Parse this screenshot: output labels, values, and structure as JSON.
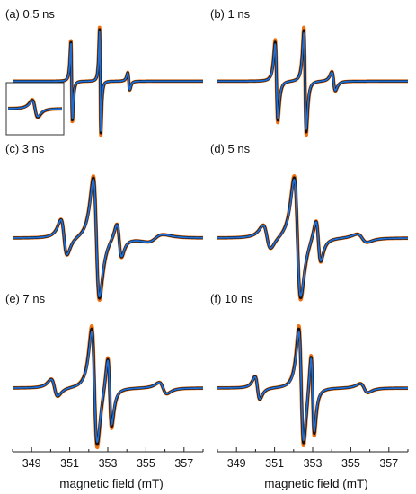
{
  "figure": {
    "xlabel": "magnetic field (mT)"
  },
  "chart_data": {
    "type": "line",
    "xlabel": "magnetic field (mT)",
    "xlim": [
      348,
      358
    ],
    "xticks": [
      349,
      351,
      353,
      355,
      357
    ],
    "colors": {
      "mean": "#1f6fd6",
      "spread_edge": "#f07010",
      "spread_core": "#111111"
    },
    "panels": [
      {
        "label": "(a) 0.5 ns",
        "lines": [
          {
            "c": 351.1,
            "amp": 1.0,
            "w": 0.07,
            "spread": 0.08
          },
          {
            "c": 352.6,
            "amp": 1.3,
            "w": 0.06,
            "spread": 0.08
          },
          {
            "c": 354.1,
            "amp": 0.22,
            "w": 0.09,
            "spread": 0.04
          }
        ],
        "inset": true
      },
      {
        "label": "(b) 1 ns",
        "lines": [
          {
            "c": 351.1,
            "amp": 1.0,
            "w": 0.12,
            "spread": 0.12
          },
          {
            "c": 352.6,
            "amp": 1.3,
            "w": 0.11,
            "spread": 0.12
          },
          {
            "c": 354.1,
            "amp": 0.25,
            "w": 0.16,
            "spread": 0.05
          }
        ]
      },
      {
        "label": "(c) 3 ns",
        "lines": [
          {
            "c": 350.7,
            "amp": 0.3,
            "w": 0.28,
            "spread": 0.03
          },
          {
            "c": 352.4,
            "amp": 1.0,
            "w": 0.28,
            "spread": 0.06
          },
          {
            "c": 353.6,
            "amp": 0.28,
            "w": 0.22,
            "spread": 0.05
          },
          {
            "c": 355.5,
            "amp": -0.06,
            "w": 0.7,
            "spread": 0.01
          }
        ]
      },
      {
        "label": "(d) 5 ns",
        "lines": [
          {
            "c": 350.6,
            "amp": 0.2,
            "w": 0.35,
            "spread": 0.03
          },
          {
            "c": 352.2,
            "amp": 1.0,
            "w": 0.3,
            "spread": 0.06
          },
          {
            "c": 353.3,
            "amp": 0.35,
            "w": 0.22,
            "spread": 0.05
          },
          {
            "c": 355.6,
            "amp": 0.07,
            "w": 0.45,
            "spread": 0.02
          }
        ]
      },
      {
        "label": "(e) 7 ns",
        "lines": [
          {
            "c": 350.2,
            "amp": 0.15,
            "w": 0.3,
            "spread": 0.04
          },
          {
            "c": 352.3,
            "amp": 1.0,
            "w": 0.25,
            "spread": 0.1
          },
          {
            "c": 353.1,
            "amp": 0.6,
            "w": 0.18,
            "spread": 0.1
          },
          {
            "c": 355.9,
            "amp": 0.1,
            "w": 0.35,
            "spread": 0.02
          }
        ]
      },
      {
        "label": "(f) 10 ns",
        "lines": [
          {
            "c": 350.1,
            "amp": 0.2,
            "w": 0.22,
            "spread": 0.05
          },
          {
            "c": 352.4,
            "amp": 1.0,
            "w": 0.22,
            "spread": 0.1
          },
          {
            "c": 353.0,
            "amp": 0.7,
            "w": 0.15,
            "spread": 0.1
          },
          {
            "c": 355.7,
            "amp": 0.08,
            "w": 0.35,
            "spread": 0.02
          }
        ]
      }
    ]
  }
}
